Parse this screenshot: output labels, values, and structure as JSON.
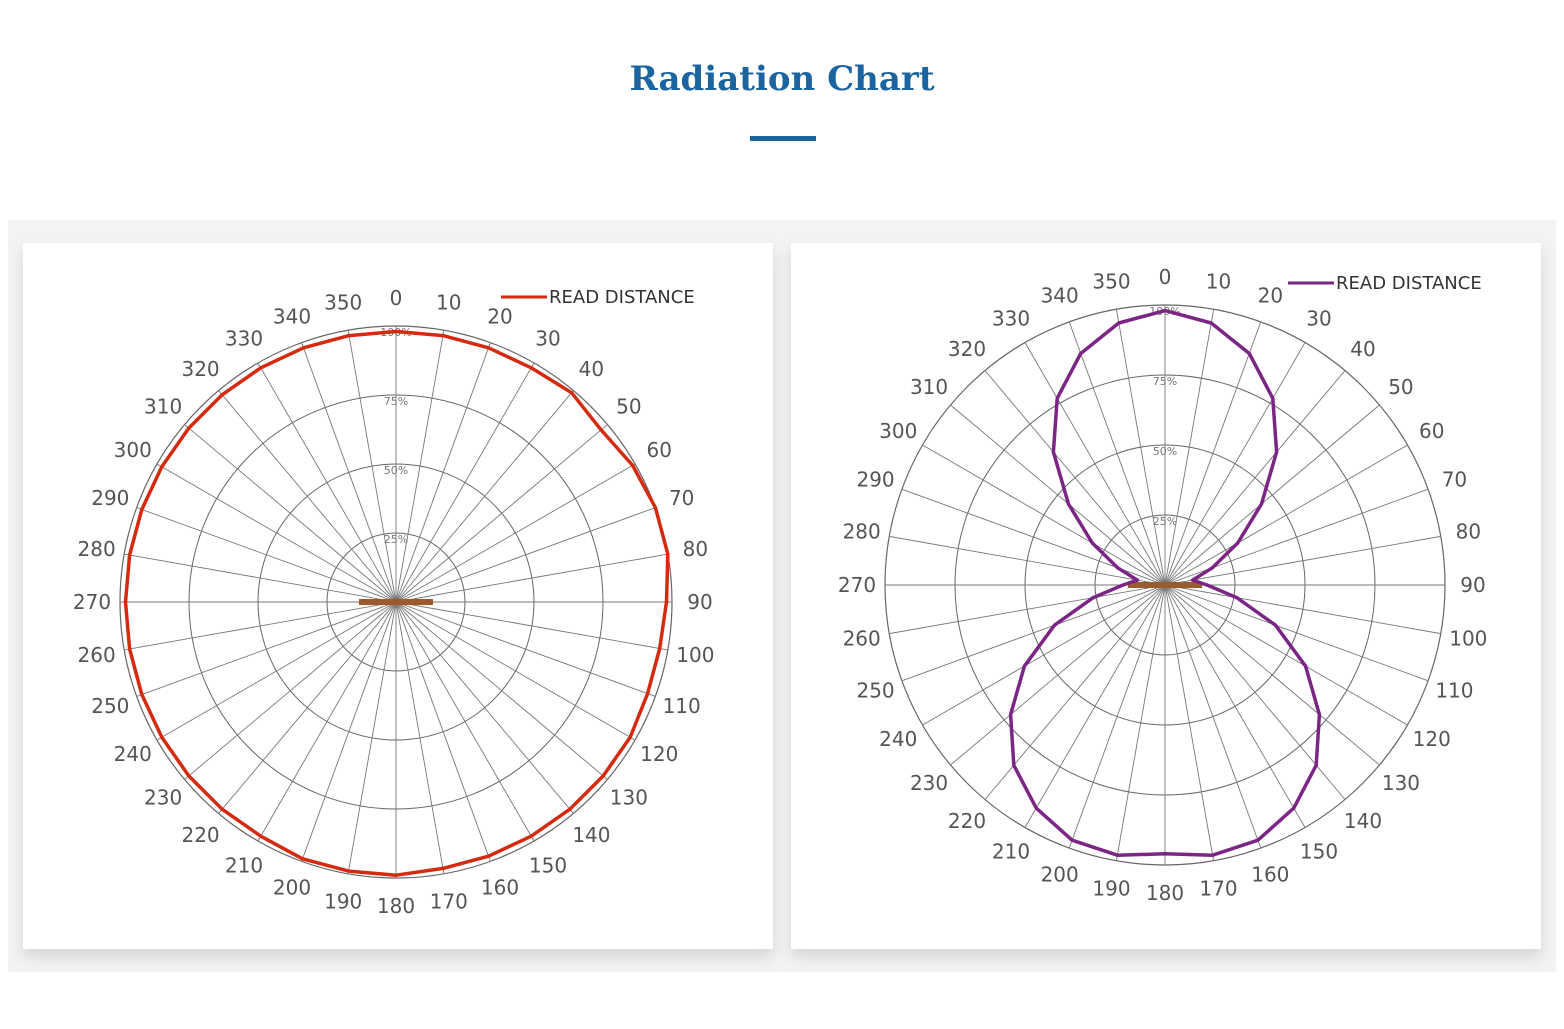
{
  "header": {
    "title": "Radiation Chart",
    "accent_color": "#1b64a0"
  },
  "chart_data": [
    {
      "type": "polar-line",
      "series": [
        {
          "name": "READ DISTANCE",
          "color": "#d42a10",
          "angles": [
            0,
            10,
            20,
            30,
            40,
            50,
            60,
            70,
            80,
            90,
            100,
            110,
            120,
            130,
            140,
            150,
            160,
            170,
            180,
            190,
            200,
            210,
            220,
            230,
            240,
            250,
            260,
            270,
            280,
            290,
            300,
            310,
            320,
            330,
            340,
            350
          ],
          "values": [
            98,
            98,
            98,
            98,
            99,
            97,
            99,
            100,
            100,
            98,
            97,
            97,
            98,
            98,
            98,
            98,
            98,
            98,
            99,
            99,
            99,
            98,
            98,
            98,
            98,
            98,
            98,
            98,
            98,
            98,
            98,
            98,
            98,
            98,
            98,
            98
          ]
        }
      ],
      "angle_ticks": [
        "0",
        "10",
        "20",
        "30",
        "40",
        "50",
        "60",
        "70",
        "80",
        "90",
        "100",
        "110",
        "120",
        "130",
        "140",
        "150",
        "160",
        "170",
        "180",
        "190",
        "200",
        "210",
        "220",
        "230",
        "240",
        "250",
        "260",
        "270",
        "280",
        "290",
        "300",
        "310",
        "320",
        "330",
        "340",
        "350"
      ],
      "radial_ticks": [
        "25%",
        "50%",
        "75%",
        "100%"
      ],
      "legend_position": "top-right",
      "grid": true
    },
    {
      "type": "polar-line",
      "series": [
        {
          "name": "READ DISTANCE",
          "color": "#7b2585",
          "angles": [
            0,
            10,
            20,
            30,
            40,
            50,
            60,
            70,
            80,
            90,
            100,
            110,
            120,
            130,
            140,
            150,
            160,
            170,
            180,
            190,
            200,
            210,
            220,
            230,
            240,
            250,
            260,
            270,
            280,
            290,
            300,
            310,
            320,
            330,
            340,
            350
          ],
          "values": [
            98,
            95,
            88,
            77,
            62,
            45,
            30,
            18,
            10,
            15,
            26,
            42,
            58,
            72,
            84,
            92,
            97,
            98,
            96,
            98,
            97,
            92,
            84,
            72,
            58,
            42,
            26,
            15,
            10,
            18,
            30,
            45,
            62,
            77,
            88,
            95
          ]
        }
      ],
      "angle_ticks": [
        "0",
        "10",
        "20",
        "30",
        "40",
        "50",
        "60",
        "70",
        "80",
        "90",
        "100",
        "110",
        "120",
        "130",
        "140",
        "150",
        "160",
        "170",
        "180",
        "190",
        "200",
        "210",
        "220",
        "230",
        "240",
        "250",
        "260",
        "270",
        "280",
        "290",
        "300",
        "310",
        "320",
        "330",
        "340",
        "350"
      ],
      "radial_ticks": [
        "25%",
        "50%",
        "75%",
        "100%"
      ],
      "legend_position": "top-right",
      "grid": true
    }
  ]
}
